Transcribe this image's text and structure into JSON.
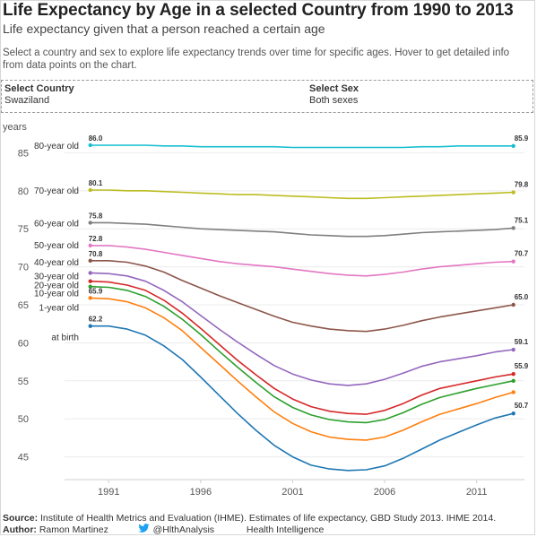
{
  "header": {
    "title": "Life Expectancy by Age in a selected Country from 1990 to 2013",
    "subtitle": "Life expectancy given that a person reached a certain age",
    "description": "Select a country and sex to explore life expectancy trends over time for specific ages. Hover to get detailed info from data points on the chart."
  },
  "filters": {
    "country_label": "Select Country",
    "country_value": "Swaziland",
    "sex_label": "Select Sex",
    "sex_value": "Both sexes"
  },
  "chart_data": {
    "type": "line",
    "title": "",
    "ylabel": "years",
    "xlabel": "",
    "x": [
      1990,
      1991,
      1992,
      1993,
      1994,
      1995,
      1996,
      1997,
      1998,
      1999,
      2000,
      2001,
      2002,
      2003,
      2004,
      2005,
      2006,
      2007,
      2008,
      2009,
      2010,
      2011,
      2012,
      2013
    ],
    "xticks": [
      "1991",
      "1996",
      "2001",
      "2006",
      "2011"
    ],
    "yticks": [
      "45",
      "50",
      "55",
      "60",
      "65",
      "70",
      "75",
      "80",
      "85"
    ],
    "ylim": [
      42,
      88
    ],
    "grid": "horizontal",
    "series": [
      {
        "name": "80-year old",
        "color": "#17becf",
        "start_label": "86.0",
        "end_label": "85.9",
        "values": [
          86.0,
          86.0,
          86.0,
          86.0,
          85.9,
          85.9,
          85.8,
          85.8,
          85.8,
          85.8,
          85.8,
          85.7,
          85.7,
          85.7,
          85.7,
          85.7,
          85.7,
          85.7,
          85.8,
          85.8,
          85.9,
          85.9,
          85.9,
          85.9
        ]
      },
      {
        "name": "70-year old",
        "color": "#bcbd22",
        "start_label": "80.1",
        "end_label": "79.8",
        "values": [
          80.1,
          80.1,
          80.0,
          80.0,
          79.9,
          79.8,
          79.7,
          79.6,
          79.5,
          79.5,
          79.4,
          79.3,
          79.2,
          79.1,
          79.0,
          79.0,
          79.1,
          79.2,
          79.3,
          79.4,
          79.5,
          79.6,
          79.7,
          79.8
        ]
      },
      {
        "name": "60-year old",
        "color": "#7f7f7f",
        "start_label": "75.8",
        "end_label": "75.1",
        "values": [
          75.8,
          75.8,
          75.7,
          75.6,
          75.4,
          75.2,
          75.0,
          74.9,
          74.8,
          74.7,
          74.6,
          74.4,
          74.2,
          74.1,
          74.0,
          74.0,
          74.1,
          74.3,
          74.5,
          74.6,
          74.7,
          74.8,
          74.9,
          75.1
        ]
      },
      {
        "name": "50-year old",
        "color": "#e377c2",
        "start_label": "72.8",
        "end_label": "70.7",
        "values": [
          72.8,
          72.8,
          72.6,
          72.3,
          71.9,
          71.5,
          71.1,
          70.7,
          70.4,
          70.2,
          70.0,
          69.7,
          69.4,
          69.1,
          68.9,
          68.8,
          69.0,
          69.3,
          69.7,
          70.0,
          70.2,
          70.4,
          70.6,
          70.7
        ]
      },
      {
        "name": "40-year old",
        "color": "#8c564b",
        "start_label": "70.8",
        "end_label": "65.0",
        "values": [
          70.8,
          70.8,
          70.6,
          70.1,
          69.3,
          68.2,
          67.2,
          66.2,
          65.3,
          64.4,
          63.5,
          62.7,
          62.2,
          61.8,
          61.6,
          61.5,
          61.8,
          62.3,
          62.9,
          63.4,
          63.8,
          64.2,
          64.6,
          65.0
        ]
      },
      {
        "name": "30-year old",
        "color": "#9467bd",
        "start_label": "",
        "end_label": "59.1",
        "values": [
          69.2,
          69.1,
          68.8,
          68.1,
          66.9,
          65.4,
          63.6,
          61.8,
          60.1,
          58.5,
          57.0,
          55.9,
          55.1,
          54.6,
          54.4,
          54.6,
          55.2,
          56.0,
          56.9,
          57.5,
          57.9,
          58.3,
          58.8,
          59.1
        ]
      },
      {
        "name": "20-year old",
        "color": "#d62728",
        "start_label": "",
        "end_label": "55.9",
        "values": [
          68.1,
          68.0,
          67.6,
          66.9,
          65.6,
          63.9,
          61.9,
          59.8,
          57.7,
          55.8,
          54.0,
          52.6,
          51.6,
          51.0,
          50.7,
          50.6,
          51.1,
          52.0,
          53.1,
          54.0,
          54.5,
          55.0,
          55.5,
          55.9
        ]
      },
      {
        "name": "10-year old",
        "color": "#2ca02c",
        "start_label": "",
        "end_label": "",
        "values": [
          67.4,
          67.3,
          66.9,
          66.1,
          64.8,
          63.1,
          61.1,
          58.9,
          56.8,
          54.8,
          52.9,
          51.5,
          50.5,
          49.9,
          49.6,
          49.5,
          49.9,
          50.8,
          51.9,
          52.8,
          53.4,
          54.0,
          54.5,
          55.0
        ]
      },
      {
        "name": "1-year old",
        "color": "#ff7f0e",
        "start_label": "65.9",
        "end_label": "",
        "values": [
          65.9,
          65.8,
          65.4,
          64.6,
          63.3,
          61.6,
          59.4,
          57.2,
          55.0,
          52.9,
          50.9,
          49.4,
          48.3,
          47.6,
          47.3,
          47.2,
          47.6,
          48.5,
          49.6,
          50.6,
          51.3,
          52.0,
          52.8,
          53.5
        ]
      },
      {
        "name": "at birth",
        "color": "#1f77b4",
        "start_label": "62.2",
        "end_label": "50.7",
        "values": [
          62.2,
          62.2,
          61.8,
          61.0,
          59.6,
          57.8,
          55.5,
          53.1,
          50.7,
          48.5,
          46.5,
          45.0,
          43.9,
          43.4,
          43.2,
          43.3,
          43.8,
          44.8,
          46.0,
          47.2,
          48.2,
          49.2,
          50.1,
          50.7
        ]
      }
    ]
  },
  "footer": {
    "source_label": "Source:",
    "source_text": "Institute of Health Metrics and Evaluation (IHME). Estimates of life expectancy, GBD Study 2013. IHME 2014.",
    "author_label": "Author:",
    "author_name": "Ramon Martinez",
    "twitter_handle": "@HlthAnalysis",
    "org": "Health Intelligence",
    "twitter_color": "#1da1f2"
  }
}
